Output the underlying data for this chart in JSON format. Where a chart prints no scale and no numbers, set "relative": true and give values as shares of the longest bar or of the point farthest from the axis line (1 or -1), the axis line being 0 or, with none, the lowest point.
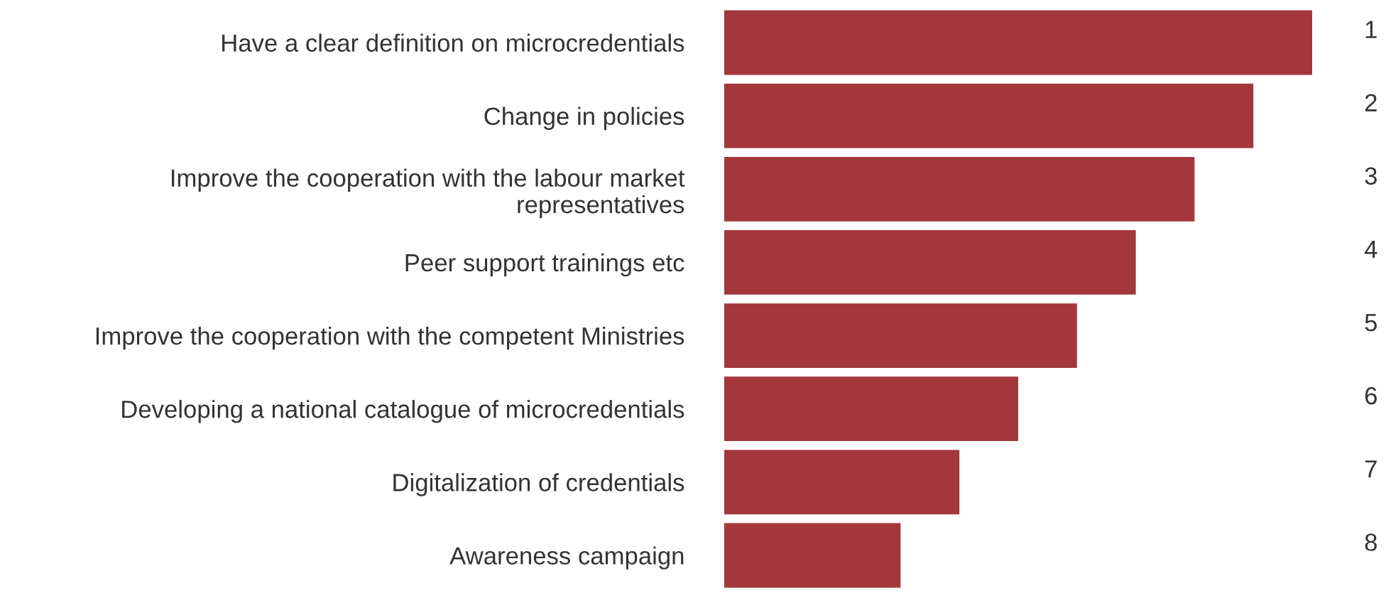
{
  "chart_data": {
    "type": "bar",
    "orientation": "horizontal",
    "relative": true,
    "categories": [
      "Have a clear definition on microcredentials",
      "Change in policies",
      "Improve the cooperation with the labour market\nrepresentatives",
      "Peer support trainings etc",
      "Improve the cooperation with the competent Ministries",
      "Developing a national catalogue of microcredentials",
      "Digitalization of credentials",
      "Awareness campaign"
    ],
    "values": [
      1,
      0.9,
      0.8,
      0.7,
      0.6,
      0.5,
      0.4,
      0.3
    ],
    "annotations": [
      "1",
      "2",
      "3",
      "4",
      "5",
      "6",
      "7",
      "8"
    ],
    "color": "#a3373c",
    "grid": false,
    "legend": false
  }
}
